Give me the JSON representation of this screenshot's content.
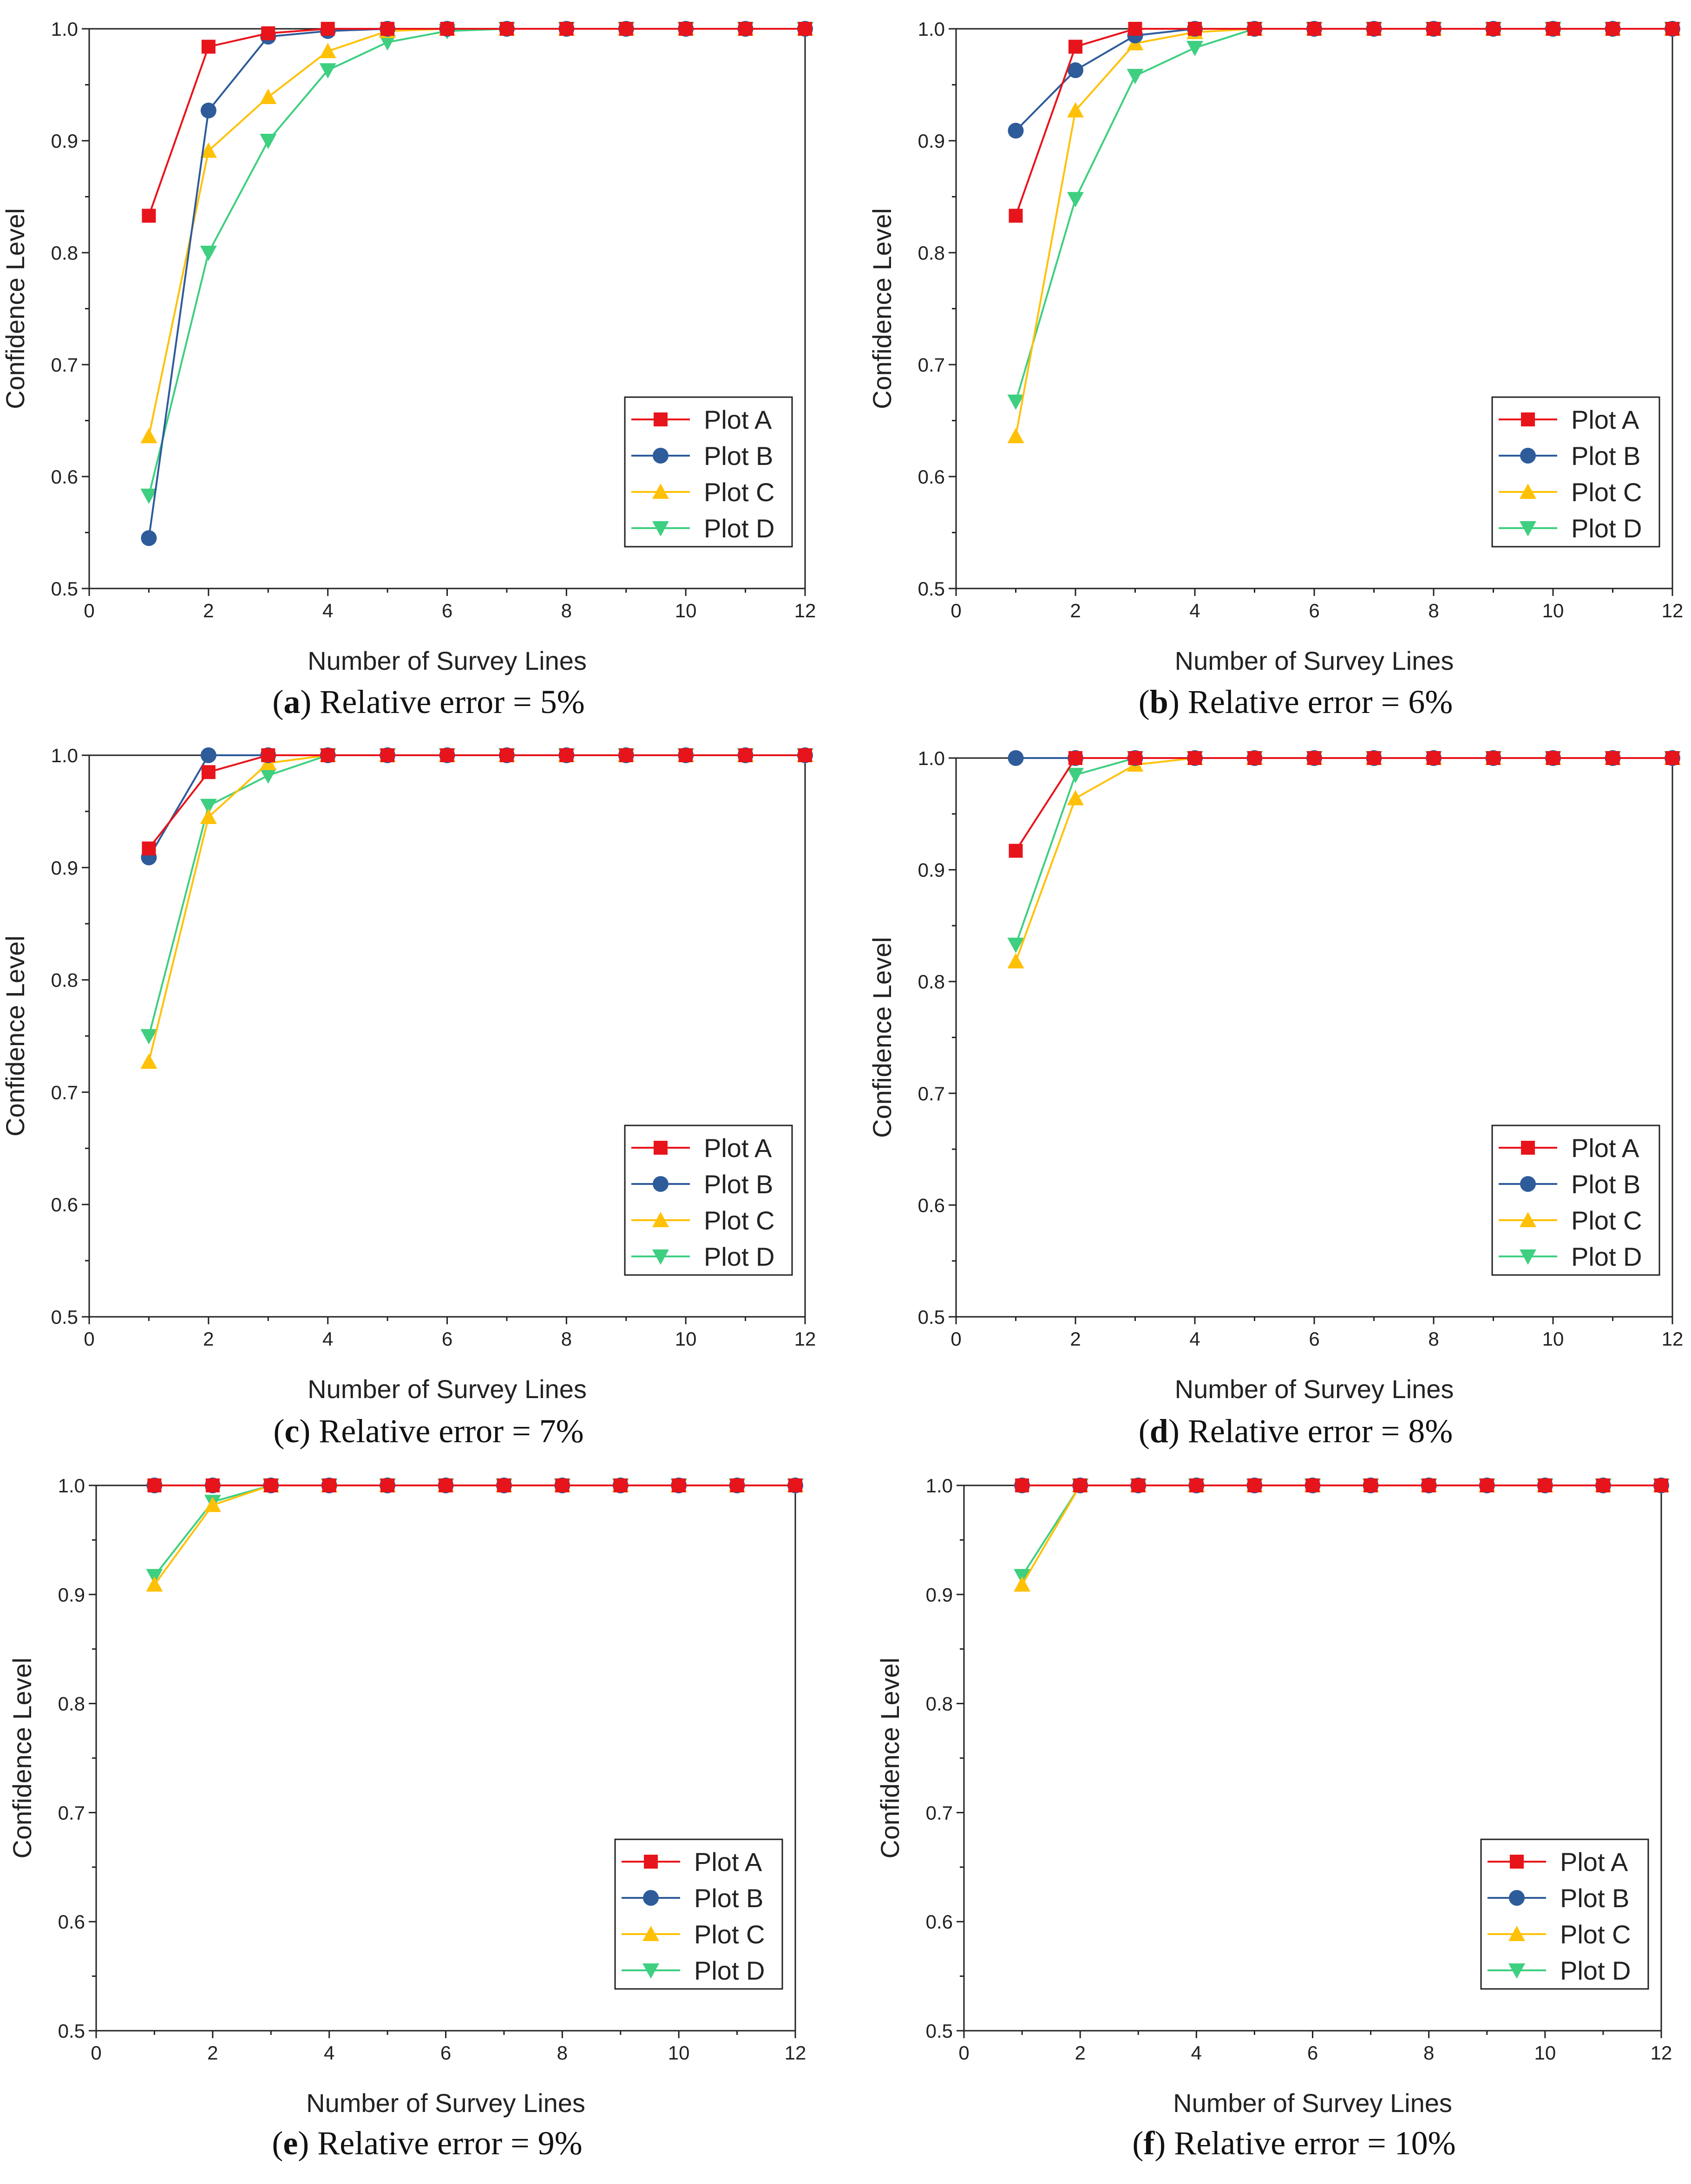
{
  "figure": {
    "colors": {
      "Plot A": "#e8141b",
      "Plot B": "#2e5b9a",
      "Plot C": "#ffc107",
      "Plot D": "#3ecf80"
    }
  },
  "chart_data": [
    {
      "type": "line",
      "caption_letter": "a",
      "caption_text": " Relative error = 5%",
      "xlabel": "Number of Survey Lines",
      "ylabel": "Confidence Level",
      "xlim": [
        0,
        12
      ],
      "ylim": [
        0.5,
        1.0
      ],
      "x_ticks": [
        "0",
        "2",
        "4",
        "6",
        "8",
        "10",
        "12"
      ],
      "y_ticks": [
        "0.5",
        "0.6",
        "0.7",
        "0.8",
        "0.9",
        "1.0"
      ],
      "legend_position": "lower-right",
      "x": [
        1,
        2,
        3,
        4,
        5,
        6,
        7,
        8,
        9,
        10,
        11,
        12
      ],
      "series": [
        {
          "name": "Plot A",
          "marker": "square",
          "values": [
            0.833,
            0.984,
            0.996,
            1.0,
            1.0,
            1.0,
            1.0,
            1.0,
            1.0,
            1.0,
            1.0,
            1.0
          ]
        },
        {
          "name": "Plot B",
          "marker": "circle",
          "values": [
            0.545,
            0.927,
            0.993,
            0.998,
            1.0,
            1.0,
            1.0,
            1.0,
            1.0,
            1.0,
            1.0,
            1.0
          ]
        },
        {
          "name": "Plot C",
          "marker": "triangle",
          "values": [
            0.636,
            0.891,
            0.939,
            0.98,
            0.998,
            1.0,
            1.0,
            1.0,
            1.0,
            1.0,
            1.0,
            1.0
          ]
        },
        {
          "name": "Plot D",
          "marker": "tri-down",
          "values": [
            0.583,
            0.8,
            0.9,
            0.963,
            0.988,
            0.998,
            1.0,
            1.0,
            1.0,
            1.0,
            1.0,
            1.0
          ]
        }
      ]
    },
    {
      "type": "line",
      "caption_letter": "b",
      "caption_text": " Relative error = 6%",
      "xlabel": "Number of Survey Lines",
      "ylabel": "Confidence Level",
      "xlim": [
        0,
        12
      ],
      "ylim": [
        0.5,
        1.0
      ],
      "x_ticks": [
        "0",
        "2",
        "4",
        "6",
        "8",
        "10",
        "12"
      ],
      "y_ticks": [
        "0.5",
        "0.6",
        "0.7",
        "0.8",
        "0.9",
        "1.0"
      ],
      "legend_position": "lower-right",
      "x": [
        1,
        2,
        3,
        4,
        5,
        6,
        7,
        8,
        9,
        10,
        11,
        12
      ],
      "series": [
        {
          "name": "Plot A",
          "marker": "square",
          "values": [
            0.833,
            0.984,
            1.0,
            1.0,
            1.0,
            1.0,
            1.0,
            1.0,
            1.0,
            1.0,
            1.0,
            1.0
          ]
        },
        {
          "name": "Plot B",
          "marker": "circle",
          "values": [
            0.909,
            0.963,
            0.994,
            1.0,
            1.0,
            1.0,
            1.0,
            1.0,
            1.0,
            1.0,
            1.0,
            1.0
          ]
        },
        {
          "name": "Plot C",
          "marker": "triangle",
          "values": [
            0.636,
            0.927,
            0.987,
            0.997,
            1.0,
            1.0,
            1.0,
            1.0,
            1.0,
            1.0,
            1.0,
            1.0
          ]
        },
        {
          "name": "Plot D",
          "marker": "tri-down",
          "values": [
            0.667,
            0.848,
            0.958,
            0.983,
            1.0,
            1.0,
            1.0,
            1.0,
            1.0,
            1.0,
            1.0,
            1.0
          ]
        }
      ]
    },
    {
      "type": "line",
      "caption_letter": "c",
      "caption_text": " Relative error = 7%",
      "xlabel": "Number of Survey Lines",
      "ylabel": "Confidence Level",
      "xlim": [
        0,
        12
      ],
      "ylim": [
        0.5,
        1.0
      ],
      "x_ticks": [
        "0",
        "2",
        "4",
        "6",
        "8",
        "10",
        "12"
      ],
      "y_ticks": [
        "0.5",
        "0.6",
        "0.7",
        "0.8",
        "0.9",
        "1.0"
      ],
      "legend_position": "lower-right",
      "x": [
        1,
        2,
        3,
        4,
        5,
        6,
        7,
        8,
        9,
        10,
        11,
        12
      ],
      "series": [
        {
          "name": "Plot A",
          "marker": "square",
          "values": [
            0.917,
            0.985,
            1.0,
            1.0,
            1.0,
            1.0,
            1.0,
            1.0,
            1.0,
            1.0,
            1.0,
            1.0
          ]
        },
        {
          "name": "Plot B",
          "marker": "circle",
          "values": [
            0.909,
            1.0,
            1.0,
            1.0,
            1.0,
            1.0,
            1.0,
            1.0,
            1.0,
            1.0,
            1.0,
            1.0
          ]
        },
        {
          "name": "Plot C",
          "marker": "triangle",
          "values": [
            0.727,
            0.945,
            0.993,
            1.0,
            1.0,
            1.0,
            1.0,
            1.0,
            1.0,
            1.0,
            1.0,
            1.0
          ]
        },
        {
          "name": "Plot D",
          "marker": "tri-down",
          "values": [
            0.75,
            0.955,
            0.982,
            1.0,
            1.0,
            1.0,
            1.0,
            1.0,
            1.0,
            1.0,
            1.0,
            1.0
          ]
        }
      ]
    },
    {
      "type": "line",
      "caption_letter": "d",
      "caption_text": " Relative error = 8%",
      "xlabel": "Number of Survey Lines",
      "ylabel": "Confidence Level",
      "xlim": [
        0,
        12
      ],
      "ylim": [
        0.5,
        1.0
      ],
      "x_ticks": [
        "0",
        "2",
        "4",
        "6",
        "8",
        "10",
        "12"
      ],
      "y_ticks": [
        "0.5",
        "0.6",
        "0.7",
        "0.8",
        "0.9",
        "1.0"
      ],
      "legend_position": "lower-right",
      "x": [
        1,
        2,
        3,
        4,
        5,
        6,
        7,
        8,
        9,
        10,
        11,
        12
      ],
      "series": [
        {
          "name": "Plot A",
          "marker": "square",
          "values": [
            0.917,
            1.0,
            1.0,
            1.0,
            1.0,
            1.0,
            1.0,
            1.0,
            1.0,
            1.0,
            1.0,
            1.0
          ]
        },
        {
          "name": "Plot B",
          "marker": "circle",
          "values": [
            1.0,
            1.0,
            1.0,
            1.0,
            1.0,
            1.0,
            1.0,
            1.0,
            1.0,
            1.0,
            1.0,
            1.0
          ]
        },
        {
          "name": "Plot C",
          "marker": "triangle",
          "values": [
            0.818,
            0.964,
            0.994,
            1.0,
            1.0,
            1.0,
            1.0,
            1.0,
            1.0,
            1.0,
            1.0,
            1.0
          ]
        },
        {
          "name": "Plot D",
          "marker": "tri-down",
          "values": [
            0.833,
            0.985,
            1.0,
            1.0,
            1.0,
            1.0,
            1.0,
            1.0,
            1.0,
            1.0,
            1.0,
            1.0
          ]
        }
      ]
    },
    {
      "type": "line",
      "caption_letter": "e",
      "caption_text": " Relative error = 9%",
      "xlabel": "Number of Survey Lines",
      "ylabel": "Confidence Level",
      "xlim": [
        0,
        12
      ],
      "ylim": [
        0.5,
        1.0
      ],
      "x_ticks": [
        "0",
        "2",
        "4",
        "6",
        "8",
        "10",
        "12"
      ],
      "y_ticks": [
        "0.5",
        "0.6",
        "0.7",
        "0.8",
        "0.9",
        "1.0"
      ],
      "legend_position": "lower-right",
      "x": [
        1,
        2,
        3,
        4,
        5,
        6,
        7,
        8,
        9,
        10,
        11,
        12
      ],
      "series": [
        {
          "name": "Plot A",
          "marker": "square",
          "values": [
            1.0,
            1.0,
            1.0,
            1.0,
            1.0,
            1.0,
            1.0,
            1.0,
            1.0,
            1.0,
            1.0,
            1.0
          ]
        },
        {
          "name": "Plot B",
          "marker": "circle",
          "values": [
            1.0,
            1.0,
            1.0,
            1.0,
            1.0,
            1.0,
            1.0,
            1.0,
            1.0,
            1.0,
            1.0,
            1.0
          ]
        },
        {
          "name": "Plot C",
          "marker": "triangle",
          "values": [
            0.909,
            0.982,
            1.0,
            1.0,
            1.0,
            1.0,
            1.0,
            1.0,
            1.0,
            1.0,
            1.0,
            1.0
          ]
        },
        {
          "name": "Plot D",
          "marker": "tri-down",
          "values": [
            0.917,
            0.985,
            1.0,
            1.0,
            1.0,
            1.0,
            1.0,
            1.0,
            1.0,
            1.0,
            1.0,
            1.0
          ]
        }
      ]
    },
    {
      "type": "line",
      "caption_letter": "f",
      "caption_text": " Relative error = 10%",
      "xlabel": "Number of Survey Lines",
      "ylabel": "Confidence Level",
      "xlim": [
        0,
        12
      ],
      "ylim": [
        0.5,
        1.0
      ],
      "x_ticks": [
        "0",
        "2",
        "4",
        "6",
        "8",
        "10",
        "12"
      ],
      "y_ticks": [
        "0.5",
        "0.6",
        "0.7",
        "0.8",
        "0.9",
        "1.0"
      ],
      "legend_position": "lower-right",
      "x": [
        1,
        2,
        3,
        4,
        5,
        6,
        7,
        8,
        9,
        10,
        11,
        12
      ],
      "series": [
        {
          "name": "Plot A",
          "marker": "square",
          "values": [
            1.0,
            1.0,
            1.0,
            1.0,
            1.0,
            1.0,
            1.0,
            1.0,
            1.0,
            1.0,
            1.0,
            1.0
          ]
        },
        {
          "name": "Plot B",
          "marker": "circle",
          "values": [
            1.0,
            1.0,
            1.0,
            1.0,
            1.0,
            1.0,
            1.0,
            1.0,
            1.0,
            1.0,
            1.0,
            1.0
          ]
        },
        {
          "name": "Plot C",
          "marker": "triangle",
          "values": [
            0.909,
            1.0,
            1.0,
            1.0,
            1.0,
            1.0,
            1.0,
            1.0,
            1.0,
            1.0,
            1.0,
            1.0
          ]
        },
        {
          "name": "Plot D",
          "marker": "tri-down",
          "values": [
            0.917,
            1.0,
            1.0,
            1.0,
            1.0,
            1.0,
            1.0,
            1.0,
            1.0,
            1.0,
            1.0,
            1.0
          ]
        }
      ]
    }
  ]
}
